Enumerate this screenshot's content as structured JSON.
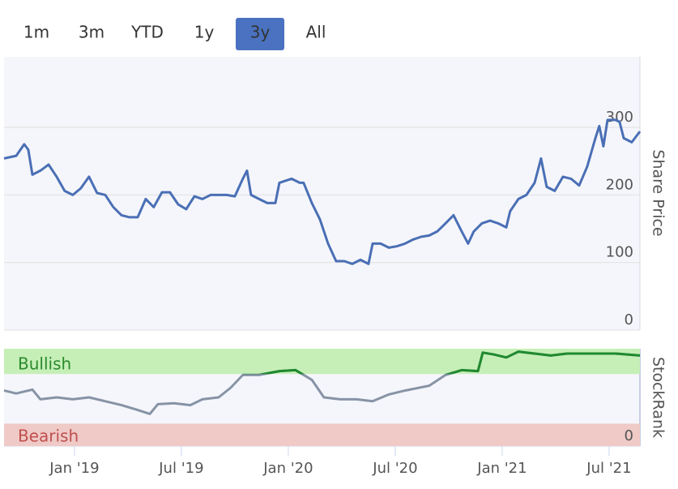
{
  "range_buttons": {
    "labels": [
      "1m",
      "3m",
      "YTD",
      "1y",
      "3y",
      "All"
    ],
    "active": "3y"
  },
  "chart_data": [
    {
      "type": "line",
      "y_label": "Share Price",
      "color": "#4a6fb5",
      "x": [
        -3.95,
        -3.27,
        -2.82,
        -2.59,
        -2.36,
        -1.91,
        -1.45,
        -1,
        -0.55,
        -0.09,
        0.36,
        0.82,
        1.27,
        1.73,
        2.18,
        2.64,
        3.09,
        3.55,
        4,
        4.45,
        4.91,
        5.36,
        5.82,
        6.27,
        6.73,
        7.18,
        7.64,
        8.09,
        8.55,
        9,
        9.45,
        9.68,
        9.91,
        10.36,
        10.82,
        11.27,
        11.5,
        12.18,
        12.64,
        12.86,
        13.32,
        13.77,
        14.23,
        14.68,
        15.14,
        15.59,
        16.05,
        16.5,
        16.73,
        17.18,
        17.64,
        18.09,
        18.55,
        19,
        19.45,
        19.91,
        20.36,
        20.82,
        21.27,
        21.73,
        22.09,
        22.41,
        22.86,
        23.32,
        23.77,
        24.23,
        24.45,
        24.91,
        25.36,
        25.82,
        26.18,
        26.5,
        26.95,
        27.41,
        27.86,
        28.32,
        28.77,
        29.23,
        29.45,
        29.68,
        29.91,
        30.36,
        30.59,
        30.82,
        31.27,
        31.73
      ],
      "values": [
        254,
        258,
        275,
        267,
        230,
        236,
        245,
        227,
        206,
        200,
        210,
        227,
        203,
        200,
        182,
        170,
        167,
        167,
        194,
        182,
        204,
        204,
        186,
        179,
        198,
        194,
        200,
        200,
        200,
        198,
        224,
        236,
        200,
        194,
        188,
        188,
        218,
        224,
        218,
        218,
        188,
        164,
        128,
        102,
        102,
        98,
        104,
        98,
        128,
        128,
        122,
        124,
        128,
        134,
        138,
        140,
        146,
        158,
        170,
        146,
        128,
        146,
        158,
        162,
        158,
        152,
        176,
        194,
        200,
        218,
        254,
        212,
        206,
        227,
        224,
        214,
        242,
        284,
        302,
        272,
        311,
        311,
        308,
        284,
        278,
        294
      ],
      "xlim": [
        -3.95,
        31.73
      ],
      "ylim": [
        0,
        400
      ],
      "yticks": [
        0,
        100,
        200,
        300
      ],
      "grid": true
    },
    {
      "type": "line",
      "y_label": "StockRank",
      "color": "#8793a6",
      "x": [
        -3.95,
        -3.27,
        -2.36,
        -1.91,
        -1,
        -0.09,
        0.82,
        1.73,
        2.64,
        3.55,
        4.23,
        4.68,
        5.59,
        6.5,
        7.18,
        8.09,
        8.77,
        9.45,
        10.36,
        11.5,
        12.41,
        13.32,
        14,
        14.91,
        15.82,
        16.73,
        17.64,
        18.55,
        19.91,
        20.82,
        21.73,
        22.64,
        22.91,
        23.55,
        24.23,
        24.91,
        25.82,
        26.73,
        27.64,
        29,
        30.36,
        31.73
      ],
      "values": [
        57,
        54,
        58,
        48,
        50,
        48,
        50,
        46,
        42,
        37,
        33,
        43,
        44,
        42,
        48,
        50,
        60,
        73,
        73,
        77,
        78,
        68,
        50,
        48,
        48,
        46,
        53,
        57,
        62,
        73,
        78,
        77,
        96,
        94,
        91,
        97,
        95,
        93,
        95,
        95,
        95,
        93
      ],
      "bands": [
        {
          "label": "Bullish",
          "range": [
            74,
            100
          ],
          "color": "#c6efb7",
          "label_color": "#2a8a2e",
          "line_color": "#1f8a2e"
        },
        {
          "label": "Bearish",
          "range": [
            0,
            23
          ],
          "color": "#efcac7",
          "label_color": "#c0504d"
        }
      ],
      "xlim": [
        -3.95,
        31.73
      ],
      "ylim": [
        0,
        100
      ],
      "yticks": [
        0
      ],
      "xticks": [
        {
          "value": 0,
          "label": "Jan '19"
        },
        {
          "value": 6,
          "label": "Jul '19"
        },
        {
          "value": 12,
          "label": "Jan '20"
        },
        {
          "value": 18,
          "label": "Jul '20"
        },
        {
          "value": 24,
          "label": "Jan '21"
        },
        {
          "value": 30,
          "label": "Jul '21"
        }
      ]
    }
  ]
}
